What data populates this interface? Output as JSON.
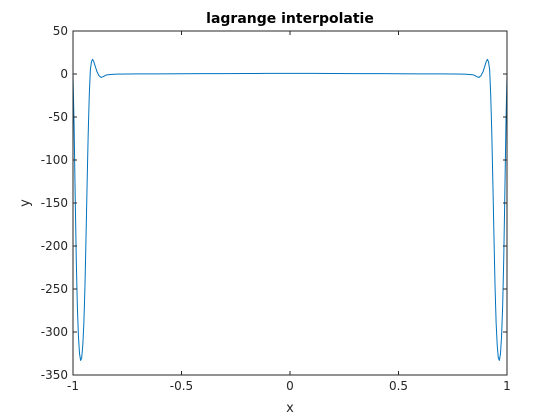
{
  "chart_data": {
    "type": "line",
    "title": "lagrange interpolatie",
    "xlabel": "x",
    "ylabel": "y",
    "xlim": [
      -1,
      1
    ],
    "ylim": [
      -350,
      50
    ],
    "xticks": [
      -1,
      -0.5,
      0,
      0.5,
      1
    ],
    "xtick_labels": [
      "-1",
      "-0.5",
      "0",
      "0.5",
      "1"
    ],
    "yticks": [
      -350,
      -300,
      -250,
      -200,
      -150,
      -100,
      -50,
      0,
      50
    ],
    "ytick_labels": [
      "-350",
      "-300",
      "-250",
      "-200",
      "-150",
      "-100",
      "-50",
      "0",
      "50"
    ],
    "grid": false,
    "box": true,
    "series": [
      {
        "color": "#0072bd",
        "x": [
          -1.0,
          -0.995,
          -0.99,
          -0.985,
          -0.98,
          -0.975,
          -0.97,
          -0.965,
          -0.96,
          -0.955,
          -0.95,
          -0.945,
          -0.94,
          -0.935,
          -0.93,
          -0.925,
          -0.92,
          -0.915,
          -0.91,
          -0.905,
          -0.9,
          -0.895,
          -0.89,
          -0.88,
          -0.87,
          -0.86,
          -0.85,
          -0.84,
          -0.82,
          -0.8,
          -0.75,
          -0.7,
          -0.6,
          -0.5,
          -0.4,
          -0.3,
          -0.2,
          -0.1,
          0.0,
          0.1,
          0.2,
          0.3,
          0.4,
          0.5,
          0.6,
          0.7,
          0.75,
          0.8,
          0.82,
          0.84,
          0.85,
          0.86,
          0.87,
          0.88,
          0.89,
          0.895,
          0.9,
          0.905,
          0.91,
          0.915,
          0.92,
          0.925,
          0.93,
          0.935,
          0.94,
          0.945,
          0.95,
          0.955,
          0.96,
          0.965,
          0.97,
          0.975,
          0.98,
          0.985,
          0.99,
          0.995,
          1.0
        ],
        "y": [
          0,
          -60,
          -140,
          -215,
          -270,
          -305,
          -325,
          -333,
          -330,
          -316,
          -290,
          -248,
          -190,
          -128,
          -70,
          -25,
          5,
          14,
          17,
          15,
          11,
          7,
          3,
          -2,
          -4,
          -3,
          -1.5,
          -0.8,
          -0.4,
          -0.2,
          0,
          0.1,
          0.2,
          0.3,
          0.4,
          0.5,
          0.6,
          0.7,
          0.7,
          0.7,
          0.6,
          0.5,
          0.4,
          0.3,
          0.2,
          0.1,
          0,
          -0.2,
          -0.4,
          -0.8,
          -1.5,
          -3,
          -4,
          -2,
          3,
          7,
          11,
          15,
          17,
          14,
          5,
          -25,
          -70,
          -128,
          -190,
          -248,
          -290,
          -316,
          -330,
          -333,
          -325,
          -305,
          -270,
          -215,
          -140,
          -60,
          0
        ]
      }
    ]
  }
}
